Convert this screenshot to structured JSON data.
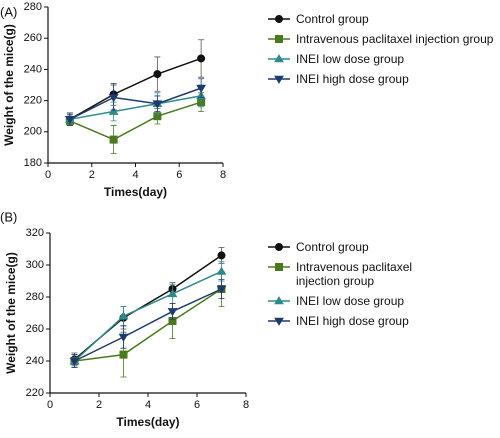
{
  "chart_data": [
    {
      "type": "line",
      "label": "(A)",
      "x_label": "Times(day)",
      "y_label": "Weight of the mice(g)",
      "x": [
        1,
        3,
        5,
        7
      ],
      "xlim": [
        0,
        8
      ],
      "xticks": [
        0,
        2,
        4,
        6,
        8
      ],
      "ylim": [
        180,
        280
      ],
      "yticks": [
        180,
        200,
        220,
        240,
        260,
        280
      ],
      "series": [
        {
          "name": "Control group",
          "color": "#111111",
          "marker": "circle",
          "values": [
            208,
            224,
            237,
            247
          ],
          "errors": [
            3,
            7,
            11,
            12
          ]
        },
        {
          "name": "Intravenous paclitaxel injection group",
          "color": "#4a7a1e",
          "marker": "square",
          "values": [
            207,
            195,
            210,
            219
          ],
          "errors": [
            3,
            9,
            5,
            6
          ]
        },
        {
          "name": "INEI low dose group",
          "color": "#2e8b8b",
          "marker": "triangle-up",
          "values": [
            208,
            213,
            218,
            223
          ],
          "errors": [
            4,
            6,
            7,
            7
          ]
        },
        {
          "name": "INEI high dose group",
          "color": "#1f3a6e",
          "marker": "triangle-down",
          "values": [
            208,
            222,
            218,
            228
          ],
          "errors": [
            4,
            8,
            5,
            6
          ]
        }
      ]
    },
    {
      "type": "line",
      "label": "(B)",
      "x_label": "Times(day)",
      "y_label": "Weight of the mice(g)",
      "x": [
        1,
        3,
        5,
        7
      ],
      "xlim": [
        0,
        8
      ],
      "xticks": [
        0,
        2,
        4,
        6,
        8
      ],
      "ylim": [
        220,
        320
      ],
      "yticks": [
        220,
        240,
        260,
        280,
        300,
        320
      ],
      "series": [
        {
          "name": "Control group",
          "color": "#111111",
          "marker": "circle",
          "values": [
            241,
            267,
            285,
            306
          ],
          "errors": [
            4,
            7,
            4,
            5
          ]
        },
        {
          "name": "Intravenous paclitaxel injection group",
          "color": "#4a7a1e",
          "marker": "square",
          "values": [
            240,
            244,
            265,
            285
          ],
          "errors": [
            4,
            14,
            11,
            11
          ]
        },
        {
          "name": "INEI low dose group",
          "color": "#2e8b8b",
          "marker": "triangle-up",
          "values": [
            240,
            268,
            282,
            296
          ],
          "errors": [
            4,
            6,
            6,
            6
          ]
        },
        {
          "name": "INEI high dose group",
          "color": "#1f3a6e",
          "marker": "triangle-down",
          "values": [
            240,
            255,
            271,
            285
          ],
          "errors": [
            4,
            7,
            5,
            6
          ]
        }
      ]
    }
  ]
}
